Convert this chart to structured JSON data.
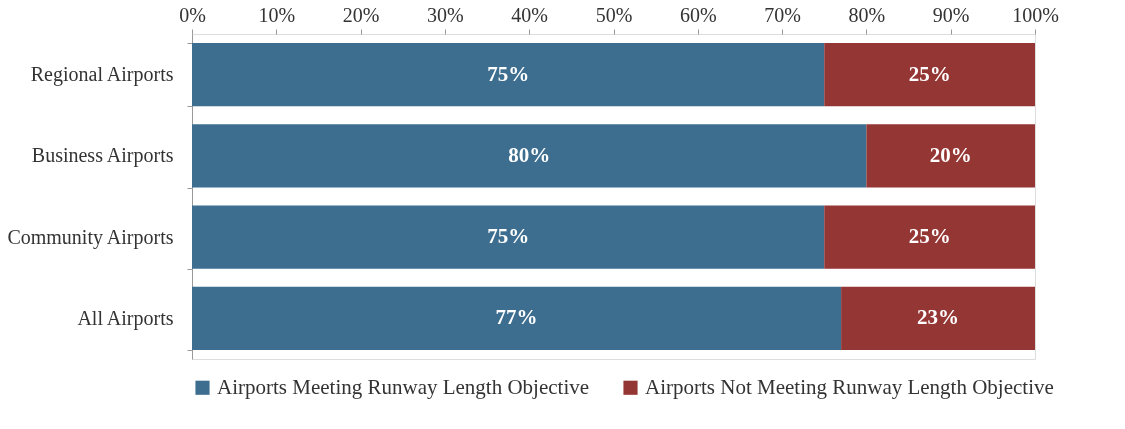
{
  "chart_data": {
    "type": "bar",
    "orientation": "horizontal",
    "stacked": true,
    "categories": [
      "Regional Airports",
      "Business Airports",
      "Community Airports",
      "All Airports"
    ],
    "series": [
      {
        "name": "Airports Meeting Runway Length Objective",
        "color": "#3d6e8f",
        "values": [
          75,
          80,
          75,
          77
        ],
        "value_labels": [
          "75%",
          "80%",
          "75%",
          "77%"
        ]
      },
      {
        "name": "Airports Not Meeting Runway Length Objective",
        "color": "#943634",
        "values": [
          25,
          20,
          25,
          23
        ],
        "value_labels": [
          "25%",
          "20%",
          "25%",
          "23%"
        ]
      }
    ],
    "xlim": [
      0,
      100
    ],
    "xticks": [
      {
        "value": 0,
        "label": "0%"
      },
      {
        "value": 10,
        "label": "10%"
      },
      {
        "value": 20,
        "label": "20%"
      },
      {
        "value": 30,
        "label": "30%"
      },
      {
        "value": 40,
        "label": "40%"
      },
      {
        "value": 50,
        "label": "50%"
      },
      {
        "value": 60,
        "label": "60%"
      },
      {
        "value": 70,
        "label": "70%"
      },
      {
        "value": 80,
        "label": "80%"
      },
      {
        "value": 90,
        "label": "90%"
      },
      {
        "value": 100,
        "label": "100%"
      }
    ],
    "grid": false,
    "legend": "bottom"
  }
}
